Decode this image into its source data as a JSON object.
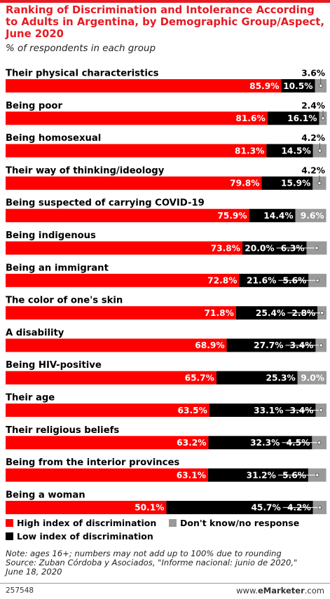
{
  "header": {
    "title": "Ranking of Discrimination and Intolerance According to Adults in Argentina, by Demographic Group/Aspect, June 2020",
    "subtitle": "% of respondents in each group"
  },
  "colors": {
    "high": "#ff0000",
    "low": "#000000",
    "dontknow": "#999999",
    "title": "#e51b24"
  },
  "chart_data": {
    "type": "bar",
    "orientation": "horizontal",
    "stacked": true,
    "xlim": [
      0,
      100
    ],
    "categories": [
      "Their physical characteristics",
      "Being poor",
      "Being homosexual",
      "Their way of thinking/ideology",
      "Being suspected of carrying COVID-19",
      "Being indigenous",
      "Being an immigrant",
      "The color of one's skin",
      "A disability",
      "Being HIV-positive",
      "Their age",
      "Their religious beliefs",
      "Being from the interior provinces",
      "Being a woman"
    ],
    "series": [
      {
        "name": "High index of discrimination",
        "values": [
          85.9,
          81.6,
          81.3,
          79.8,
          75.9,
          73.8,
          72.8,
          71.8,
          68.9,
          65.7,
          63.5,
          63.2,
          63.1,
          50.1
        ]
      },
      {
        "name": "Low index of discrimination",
        "values": [
          10.5,
          16.1,
          14.5,
          15.9,
          14.4,
          20.0,
          21.6,
          25.4,
          27.7,
          25.3,
          33.1,
          32.3,
          31.2,
          45.7
        ]
      },
      {
        "name": "Don't know/no response",
        "values": [
          3.6,
          2.4,
          4.2,
          4.2,
          9.6,
          6.3,
          5.6,
          2.8,
          3.4,
          9.0,
          3.4,
          4.5,
          5.6,
          4.2
        ]
      }
    ],
    "labels": {
      "high": [
        "85.9%",
        "81.6%",
        "81.3%",
        "79.8%",
        "75.9%",
        "73.8%",
        "72.8%",
        "71.8%",
        "68.9%",
        "65.7%",
        "63.5%",
        "63.2%",
        "63.1%",
        "50.1%"
      ],
      "low": [
        "10.5%",
        "16.1%",
        "14.5%",
        "15.9%",
        "14.4%",
        "20.0%",
        "21.6%",
        "25.4%",
        "27.7%",
        "25.3%",
        "33.1%",
        "32.3%",
        "31.2%",
        "45.7%"
      ],
      "dontknow": [
        "3.6%",
        "2.4%",
        "4.2%",
        "4.2%",
        "9.6%",
        "6.3%",
        "5.6%",
        "2.8%",
        "3.4%",
        "9.0%",
        "3.4%",
        "4.5%",
        "5.6%",
        "4.2%"
      ]
    }
  },
  "legend": {
    "high": "High index of discrimination",
    "low": "Low index of discrimination",
    "dontknow": "Don't know/no response"
  },
  "notes": {
    "line1": "Note: ages 16+; numbers may not add up to 100% due to rounding",
    "line2": "Source: Zuban Córdoba y Asociados, \"Informe nacional: junio de 2020,\"",
    "line3": "June 18, 2020"
  },
  "footer": {
    "id": "257548",
    "brand_prefix": "www.",
    "brand_name": "eMarketer",
    "brand_suffix": ".com"
  }
}
